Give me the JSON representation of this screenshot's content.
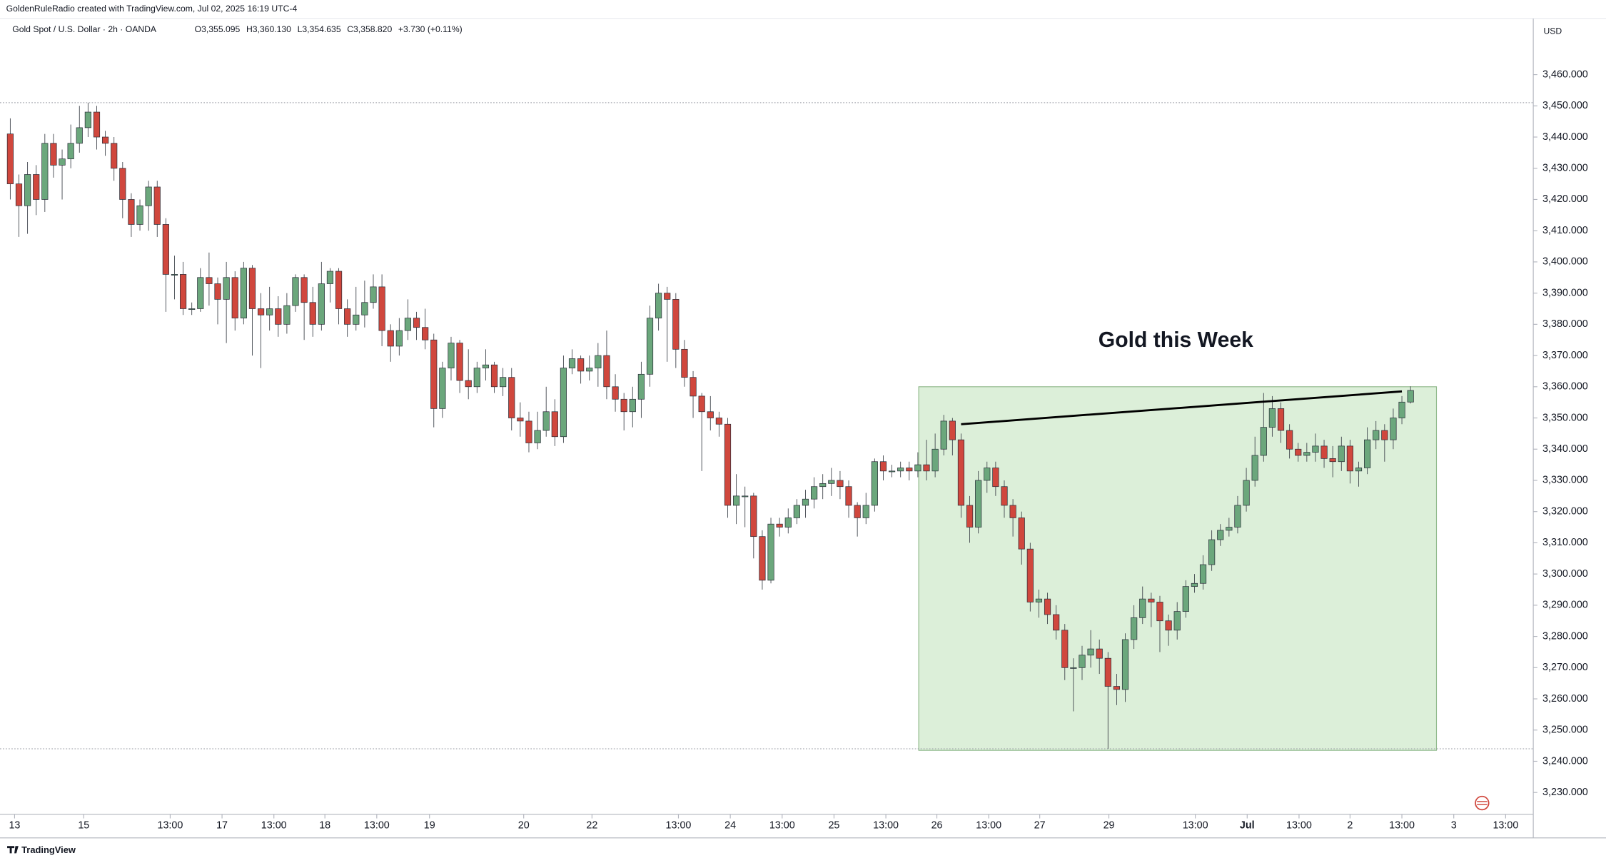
{
  "chart_data": {
    "type": "candlestick",
    "title": "Gold Spot / U.S. Dollar · 2h · OANDA",
    "credit": "GoldenRuleRadio created with TradingView.com, Jul 02, 2025 16:19 UTC-4",
    "legend_values": [
      "O3,355.095",
      "H3,360.130",
      "L3,354.635",
      "C3,358.820",
      "+3.730 (+0.11%)"
    ],
    "currency": "USD",
    "annotation": "Gold this Week",
    "brand": "TradingView",
    "up_color": "#6ba77c",
    "down_color": "#d0473d",
    "xlim": [
      -0.24,
      176.2
    ],
    "ylim": [
      3223,
      3478
    ],
    "yticks": [
      {
        "value": 3230,
        "label": "3,230.000"
      },
      {
        "value": 3240,
        "label": "3,240.000"
      },
      {
        "value": 3250,
        "label": "3,250.000"
      },
      {
        "value": 3260,
        "label": "3,260.000"
      },
      {
        "value": 3270,
        "label": "3,270.000"
      },
      {
        "value": 3280,
        "label": "3,280.000"
      },
      {
        "value": 3290,
        "label": "3,290.000"
      },
      {
        "value": 3300,
        "label": "3,300.000"
      },
      {
        "value": 3310,
        "label": "3,310.000"
      },
      {
        "value": 3320,
        "label": "3,320.000"
      },
      {
        "value": 3330,
        "label": "3,330.000"
      },
      {
        "value": 3340,
        "label": "3,340.000"
      },
      {
        "value": 3350,
        "label": "3,350.000"
      },
      {
        "value": 3360,
        "label": "3,360.000"
      },
      {
        "value": 3370,
        "label": "3,370.000"
      },
      {
        "value": 3380,
        "label": "3,380.000"
      },
      {
        "value": 3390,
        "label": "3,390.000"
      },
      {
        "value": 3400,
        "label": "3,400.000"
      },
      {
        "value": 3410,
        "label": "3,410.000"
      },
      {
        "value": 3420,
        "label": "3,420.000"
      },
      {
        "value": 3430,
        "label": "3,430.000"
      },
      {
        "value": 3440,
        "label": "3,440.000"
      },
      {
        "value": 3450,
        "label": "3,450.000"
      },
      {
        "value": 3460,
        "label": "3,460.000"
      }
    ],
    "xticks": [
      {
        "value": 0.5,
        "label": "13"
      },
      {
        "value": 8.5,
        "label": "15"
      },
      {
        "value": 18.5,
        "label": "13:00"
      },
      {
        "value": 24.5,
        "label": "17"
      },
      {
        "value": 30.5,
        "label": "13:00"
      },
      {
        "value": 36.4,
        "label": "18"
      },
      {
        "value": 42.4,
        "label": "13:00"
      },
      {
        "value": 48.5,
        "label": "19"
      },
      {
        "value": 59.4,
        "label": "20"
      },
      {
        "value": 67.3,
        "label": "22"
      },
      {
        "value": 77.3,
        "label": "13:00"
      },
      {
        "value": 83.3,
        "label": "24"
      },
      {
        "value": 89.3,
        "label": "13:00"
      },
      {
        "value": 95.3,
        "label": "25"
      },
      {
        "value": 101.3,
        "label": "13:00"
      },
      {
        "value": 107.2,
        "label": "26"
      },
      {
        "value": 113.2,
        "label": "13:00"
      },
      {
        "value": 119.1,
        "label": "27"
      },
      {
        "value": 127.1,
        "label": "29"
      },
      {
        "value": 137.1,
        "label": "13:00"
      },
      {
        "value": 143.1,
        "label": "Jul"
      },
      {
        "value": 149.1,
        "label": "13:00"
      },
      {
        "value": 155,
        "label": "2"
      },
      {
        "value": 161,
        "label": "13:00"
      },
      {
        "value": 167,
        "label": "3"
      },
      {
        "value": 173,
        "label": "13:00"
      }
    ],
    "hlines": [
      3451,
      3244
    ],
    "highlight": {
      "x": [
        105.1,
        165
      ],
      "y": [
        3243.5,
        3360
      ],
      "color": "#dcefd9"
    },
    "trendline": {
      "x": [
        110,
        161
      ],
      "y": [
        3348,
        3358.5
      ]
    },
    "ohlc": [
      [
        3441,
        3446,
        3420,
        3425
      ],
      [
        3425,
        3428,
        3408,
        3418
      ],
      [
        3418,
        3432,
        3409,
        3428
      ],
      [
        3428,
        3431,
        3415,
        3420
      ],
      [
        3420,
        3441,
        3416,
        3438
      ],
      [
        3438,
        3441,
        3427,
        3431
      ],
      [
        3431,
        3436,
        3420,
        3433
      ],
      [
        3433,
        3444,
        3430,
        3438
      ],
      [
        3438,
        3450,
        3435,
        3443
      ],
      [
        3443,
        3451,
        3440,
        3448
      ],
      [
        3448,
        3450,
        3436,
        3440
      ],
      [
        3440,
        3442,
        3434,
        3438
      ],
      [
        3438,
        3440,
        3426,
        3430
      ],
      [
        3430,
        3432,
        3414,
        3420
      ],
      [
        3420,
        3422,
        3408,
        3412
      ],
      [
        3412,
        3420,
        3410,
        3418
      ],
      [
        3418,
        3426,
        3410,
        3424
      ],
      [
        3424,
        3426,
        3408,
        3412
      ],
      [
        3412,
        3414,
        3384,
        3396
      ],
      [
        3396,
        3402,
        3388,
        3396
      ],
      [
        3396,
        3400,
        3383,
        3385
      ],
      [
        3385,
        3387,
        3383,
        3385
      ],
      [
        3385,
        3398,
        3384,
        3395
      ],
      [
        3395,
        3403,
        3386,
        3393
      ],
      [
        3393,
        3395,
        3380,
        3388
      ],
      [
        3388,
        3400,
        3374,
        3395
      ],
      [
        3395,
        3397,
        3378,
        3382
      ],
      [
        3382,
        3400,
        3380,
        3398
      ],
      [
        3398,
        3399,
        3370,
        3385
      ],
      [
        3385,
        3390,
        3366,
        3383
      ],
      [
        3383,
        3392,
        3378,
        3385
      ],
      [
        3385,
        3389,
        3376,
        3380
      ],
      [
        3380,
        3390,
        3377,
        3386
      ],
      [
        3386,
        3396,
        3384,
        3395
      ],
      [
        3395,
        3396,
        3375,
        3387
      ],
      [
        3387,
        3392,
        3376,
        3380
      ],
      [
        3380,
        3400,
        3378,
        3393
      ],
      [
        3393,
        3398,
        3387,
        3397
      ],
      [
        3397,
        3398,
        3380,
        3385
      ],
      [
        3385,
        3388,
        3376,
        3380
      ],
      [
        3380,
        3392,
        3378,
        3383
      ],
      [
        3383,
        3394,
        3379,
        3387
      ],
      [
        3387,
        3396,
        3385,
        3392
      ],
      [
        3392,
        3396,
        3373,
        3378
      ],
      [
        3378,
        3380,
        3368,
        3373
      ],
      [
        3373,
        3382,
        3370,
        3378
      ],
      [
        3378,
        3388,
        3375,
        3382
      ],
      [
        3382,
        3384,
        3375,
        3379
      ],
      [
        3379,
        3385,
        3372,
        3375
      ],
      [
        3375,
        3377,
        3347,
        3353
      ],
      [
        3353,
        3368,
        3350,
        3366
      ],
      [
        3366,
        3376,
        3362,
        3374
      ],
      [
        3374,
        3375,
        3358,
        3362
      ],
      [
        3362,
        3372,
        3356,
        3360
      ],
      [
        3360,
        3368,
        3358,
        3366
      ],
      [
        3366,
        3372,
        3362,
        3367
      ],
      [
        3367,
        3368,
        3358,
        3360
      ],
      [
        3360,
        3366,
        3357,
        3363
      ],
      [
        3363,
        3366,
        3346,
        3350
      ],
      [
        3350,
        3355,
        3344,
        3349
      ],
      [
        3349,
        3352,
        3339,
        3342
      ],
      [
        3342,
        3352,
        3340,
        3346
      ],
      [
        3346,
        3360,
        3344,
        3352
      ],
      [
        3352,
        3356,
        3341,
        3344
      ],
      [
        3344,
        3370,
        3342,
        3366
      ],
      [
        3366,
        3372,
        3364,
        3369
      ],
      [
        3369,
        3370,
        3361,
        3365
      ],
      [
        3365,
        3370,
        3362,
        3366
      ],
      [
        3366,
        3374,
        3360,
        3370
      ],
      [
        3370,
        3378,
        3356,
        3360
      ],
      [
        3360,
        3364,
        3352,
        3356
      ],
      [
        3356,
        3358,
        3346,
        3352
      ],
      [
        3352,
        3360,
        3347,
        3356
      ],
      [
        3356,
        3368,
        3350,
        3364
      ],
      [
        3364,
        3386,
        3360,
        3382
      ],
      [
        3382,
        3393,
        3378,
        3390
      ],
      [
        3390,
        3392,
        3368,
        3388
      ],
      [
        3388,
        3390,
        3366,
        3372
      ],
      [
        3372,
        3375,
        3360,
        3363
      ],
      [
        3363,
        3365,
        3350,
        3357
      ],
      [
        3357,
        3358,
        3333,
        3352
      ],
      [
        3352,
        3357,
        3346,
        3350
      ],
      [
        3350,
        3352,
        3344,
        3348
      ],
      [
        3348,
        3350,
        3318,
        3322
      ],
      [
        3322,
        3332,
        3316,
        3325
      ],
      [
        3325,
        3328,
        3315,
        3325
      ],
      [
        3325,
        3326,
        3305,
        3312
      ],
      [
        3312,
        3314,
        3295,
        3298
      ],
      [
        3298,
        3318,
        3297,
        3316
      ],
      [
        3316,
        3318,
        3312,
        3315
      ],
      [
        3315,
        3321,
        3313,
        3318
      ],
      [
        3318,
        3324,
        3316,
        3322
      ],
      [
        3322,
        3327,
        3318,
        3324
      ],
      [
        3324,
        3331,
        3321,
        3328
      ],
      [
        3328,
        3332,
        3324,
        3329
      ],
      [
        3329,
        3334,
        3325,
        3330
      ],
      [
        3330,
        3333,
        3324,
        3328
      ],
      [
        3328,
        3330,
        3318,
        3322
      ],
      [
        3322,
        3323,
        3312,
        3318
      ],
      [
        3318,
        3326,
        3316,
        3322
      ],
      [
        3322,
        3337,
        3320,
        3336
      ],
      [
        3336,
        3338,
        3330,
        3333
      ],
      [
        3333,
        3335,
        3331,
        3333
      ],
      [
        3333,
        3336,
        3331,
        3334
      ],
      [
        3334,
        3336,
        3330,
        3333
      ],
      [
        3333,
        3339,
        3331,
        3335
      ],
      [
        3335,
        3343,
        3330,
        3333
      ],
      [
        3333,
        3345,
        3331,
        3340
      ],
      [
        3340,
        3351,
        3338,
        3349
      ],
      [
        3349,
        3350,
        3338,
        3343
      ],
      [
        3343,
        3345,
        3318,
        3322
      ],
      [
        3322,
        3325,
        3310,
        3315
      ],
      [
        3315,
        3333,
        3313,
        3330
      ],
      [
        3330,
        3336,
        3326,
        3334
      ],
      [
        3334,
        3336,
        3325,
        3328
      ],
      [
        3328,
        3330,
        3318,
        3322
      ],
      [
        3322,
        3324,
        3312,
        3318
      ],
      [
        3318,
        3320,
        3303,
        3308
      ],
      [
        3308,
        3310,
        3288,
        3291
      ],
      [
        3291,
        3295,
        3286,
        3292
      ],
      [
        3292,
        3294,
        3284,
        3287
      ],
      [
        3287,
        3290,
        3279,
        3282
      ],
      [
        3282,
        3284,
        3266,
        3270
      ],
      [
        3270,
        3273,
        3256,
        3270
      ],
      [
        3270,
        3277,
        3266,
        3274
      ],
      [
        3274,
        3282,
        3270,
        3276
      ],
      [
        3276,
        3279,
        3268,
        3273
      ],
      [
        3273,
        3275,
        3244,
        3264
      ],
      [
        3264,
        3268,
        3258,
        3263
      ],
      [
        3263,
        3281,
        3259,
        3279
      ],
      [
        3279,
        3290,
        3276,
        3286
      ],
      [
        3286,
        3296,
        3284,
        3292
      ],
      [
        3292,
        3294,
        3283,
        3291
      ],
      [
        3291,
        3293,
        3275,
        3285
      ],
      [
        3285,
        3287,
        3277,
        3282
      ],
      [
        3282,
        3291,
        3279,
        3288
      ],
      [
        3288,
        3298,
        3286,
        3296
      ],
      [
        3296,
        3300,
        3294,
        3297
      ],
      [
        3297,
        3306,
        3295,
        3303
      ],
      [
        3303,
        3314,
        3301,
        3311
      ],
      [
        3311,
        3316,
        3309,
        3314
      ],
      [
        3314,
        3318,
        3312,
        3315
      ],
      [
        3315,
        3325,
        3313,
        3322
      ],
      [
        3322,
        3334,
        3320,
        3330
      ],
      [
        3330,
        3344,
        3328,
        3338
      ],
      [
        3338,
        3358,
        3336,
        3347
      ],
      [
        3347,
        3357,
        3344,
        3353
      ],
      [
        3353,
        3355,
        3342,
        3346
      ],
      [
        3346,
        3348,
        3337,
        3340
      ],
      [
        3340,
        3342,
        3336,
        3338
      ],
      [
        3338,
        3342,
        3336,
        3339
      ],
      [
        3339,
        3345,
        3336,
        3341
      ],
      [
        3341,
        3343,
        3334,
        3337
      ],
      [
        3337,
        3341,
        3331,
        3336
      ],
      [
        3336,
        3344,
        3333,
        3341
      ],
      [
        3341,
        3343,
        3329,
        3333
      ],
      [
        3333,
        3336,
        3328,
        3334
      ],
      [
        3334,
        3347,
        3332,
        3343
      ],
      [
        3343,
        3349,
        3340,
        3346
      ],
      [
        3346,
        3348,
        3336,
        3343
      ],
      [
        3343,
        3353,
        3340,
        3350
      ],
      [
        3350,
        3357,
        3348,
        3355.09
      ],
      [
        3355.095,
        3360.13,
        3354.635,
        3358.82
      ]
    ]
  }
}
